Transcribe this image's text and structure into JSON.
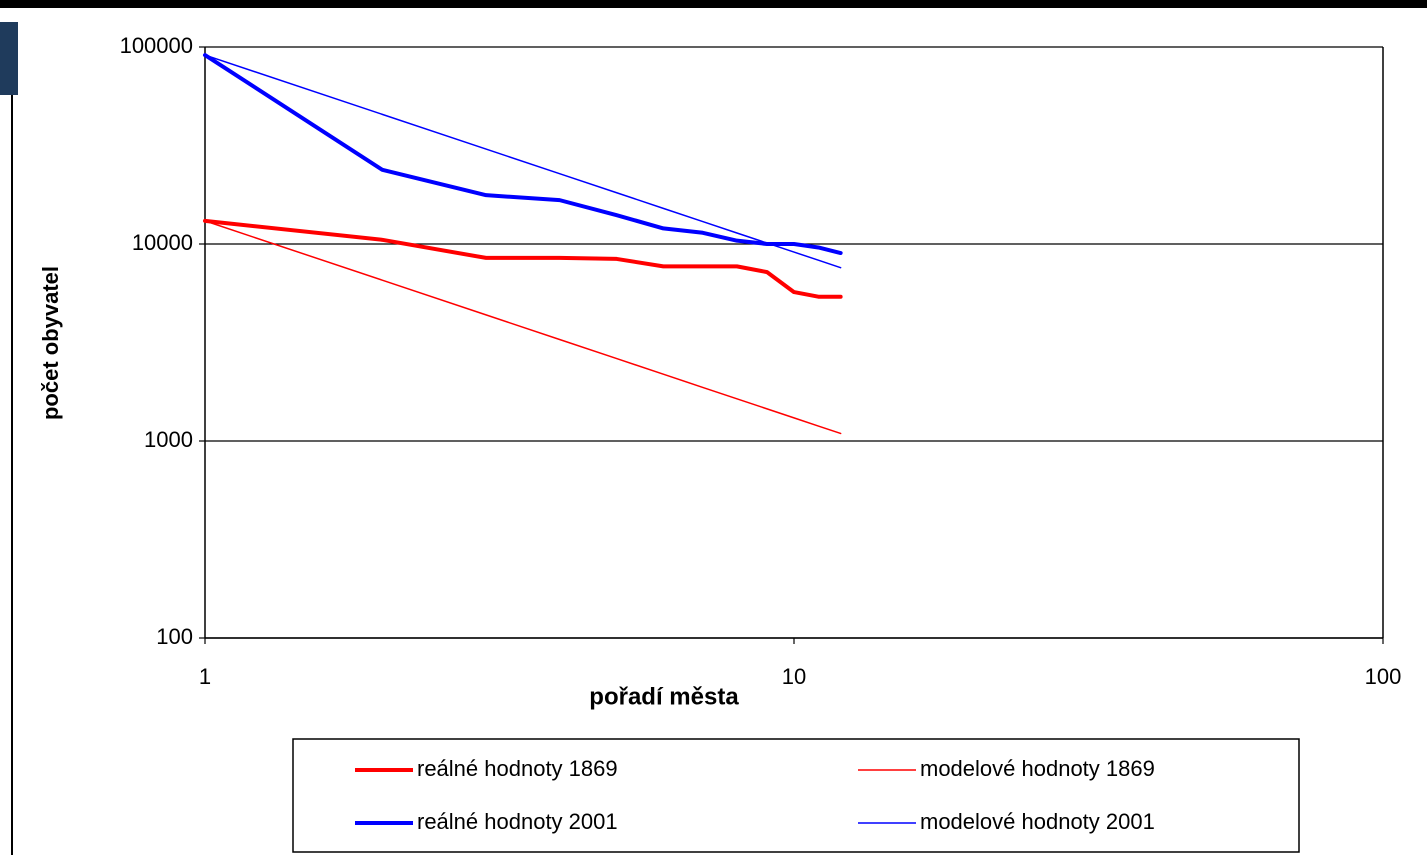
{
  "chart_data": {
    "type": "line",
    "xlabel": "pořadí města",
    "ylabel": "počet obyvatel",
    "x": [
      1,
      2,
      3,
      4,
      5,
      6,
      7,
      8,
      9,
      10,
      11,
      12
    ],
    "series": [
      {
        "name": "reálné hodnoty 1869",
        "color": "#ff0000",
        "width": 4,
        "values": [
          13100,
          10500,
          8500,
          8500,
          8400,
          7700,
          7700,
          7700,
          7200,
          5700,
          5400,
          5400
        ]
      },
      {
        "name": "modelové hodnoty 1869",
        "color": "#ff0000",
        "width": 1.5,
        "values": [
          13100,
          6550,
          4367,
          3275,
          2620,
          2183,
          1871,
          1638,
          1456,
          1310,
          1191,
          1092
        ]
      },
      {
        "name": "reálné hodnoty 2001",
        "color": "#0000ff",
        "width": 4,
        "values": [
          91000,
          23800,
          17700,
          16700,
          14000,
          12000,
          11400,
          10400,
          10000,
          10000,
          9600,
          9000
        ]
      },
      {
        "name": "modelové hodnoty 2001",
        "color": "#0000ff",
        "width": 1.5,
        "values": [
          91000,
          45500,
          30333,
          22750,
          18200,
          15167,
          13000,
          11375,
          10111,
          9100,
          8273,
          7583
        ]
      }
    ],
    "xscale": "log",
    "yscale": "log",
    "xlim": [
      1,
      100
    ],
    "xticks": [
      1,
      10,
      100
    ],
    "ylim": [
      100,
      100000
    ],
    "yticks": [
      100,
      1000,
      10000,
      100000
    ],
    "grid": true
  }
}
